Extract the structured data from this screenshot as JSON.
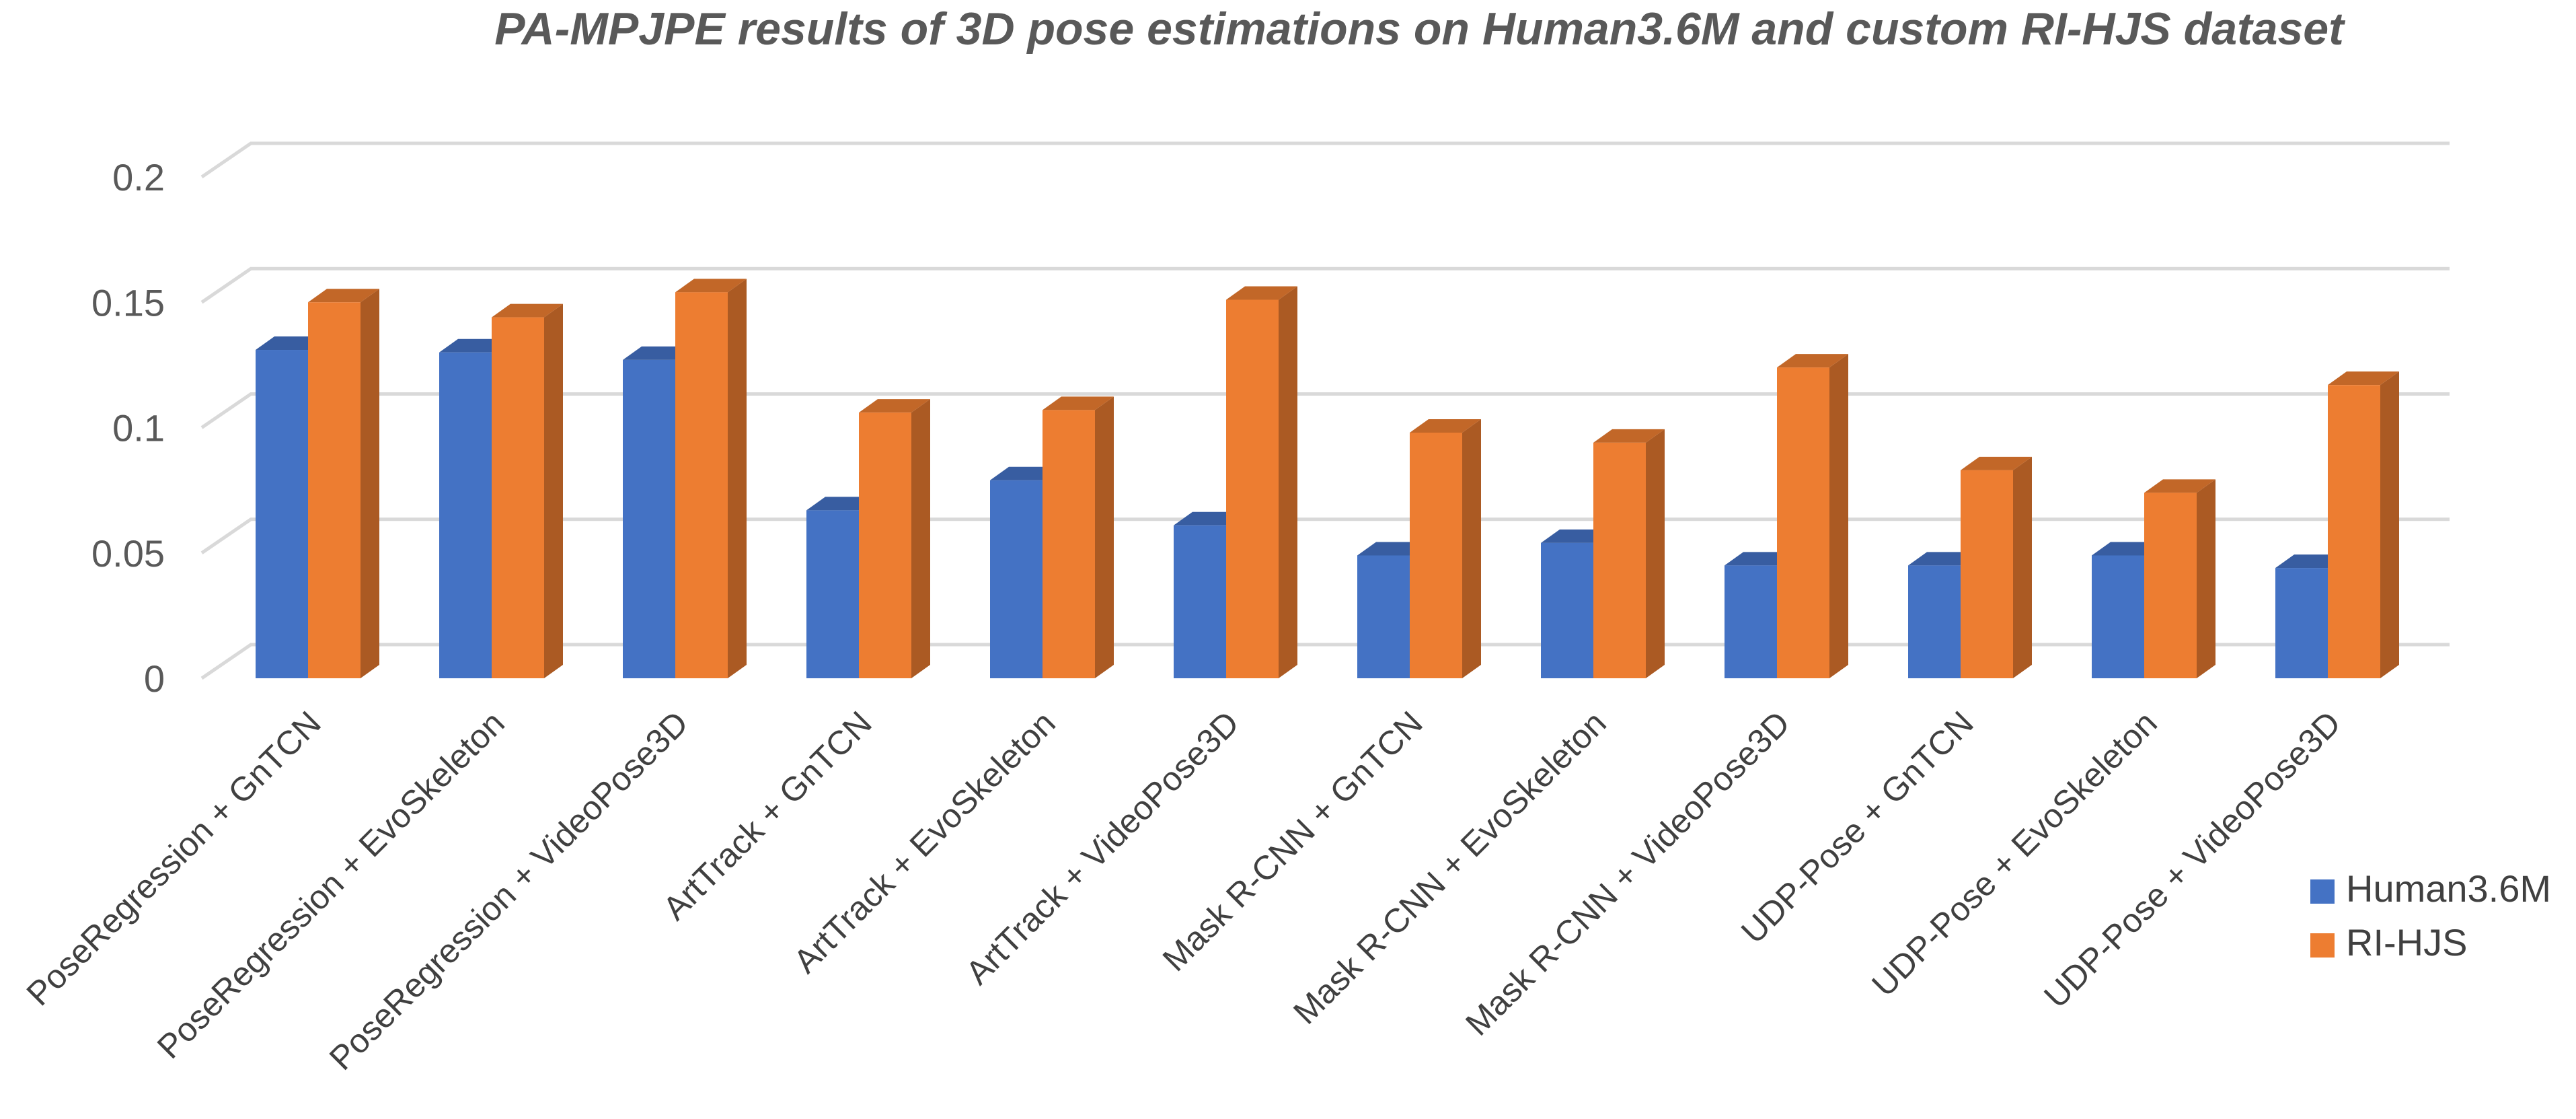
{
  "chart_data": {
    "type": "bar",
    "title": "PA-MPJPE results of 3D pose estimations on Human3.6M  and custom RI-HJS dataset",
    "xlabel": "",
    "ylabel": "",
    "ylim": [
      0,
      0.2
    ],
    "yticks": [
      "0",
      "0.05",
      "0.1",
      "0.15",
      "0.2"
    ],
    "ytick_values": [
      0,
      0.05,
      0.1,
      0.15,
      0.2
    ],
    "grid": true,
    "legend_position": "bottom-right",
    "categories": [
      "PoseRegression + GnTCN",
      "PoseRegression + EvoSkeleton",
      "PoseRegression + VideoPose3D",
      "ArtTrack + GnTCN",
      "ArtTrack + EvoSkeleton",
      "ArtTrack + VideoPose3D",
      "Mask R-CNN + GnTCN",
      "Mask R-CNN + EvoSkeleton",
      "Mask R-CNN + VideoPose3D",
      "UDP-Pose + GnTCN",
      "UDP-Pose + EvoSkeleton",
      "UDP-Pose + VideoPose3D"
    ],
    "series": [
      {
        "name": "Human3.6M",
        "color": "#4472C4",
        "values": [
          0.131,
          0.13,
          0.127,
          0.067,
          0.079,
          0.061,
          0.049,
          0.054,
          0.045,
          0.045,
          0.049,
          0.044
        ]
      },
      {
        "name": "RI-HJS",
        "color": "#ED7D31",
        "values": [
          0.15,
          0.144,
          0.154,
          0.106,
          0.107,
          0.151,
          0.098,
          0.094,
          0.124,
          0.083,
          0.074,
          0.117
        ]
      }
    ]
  }
}
